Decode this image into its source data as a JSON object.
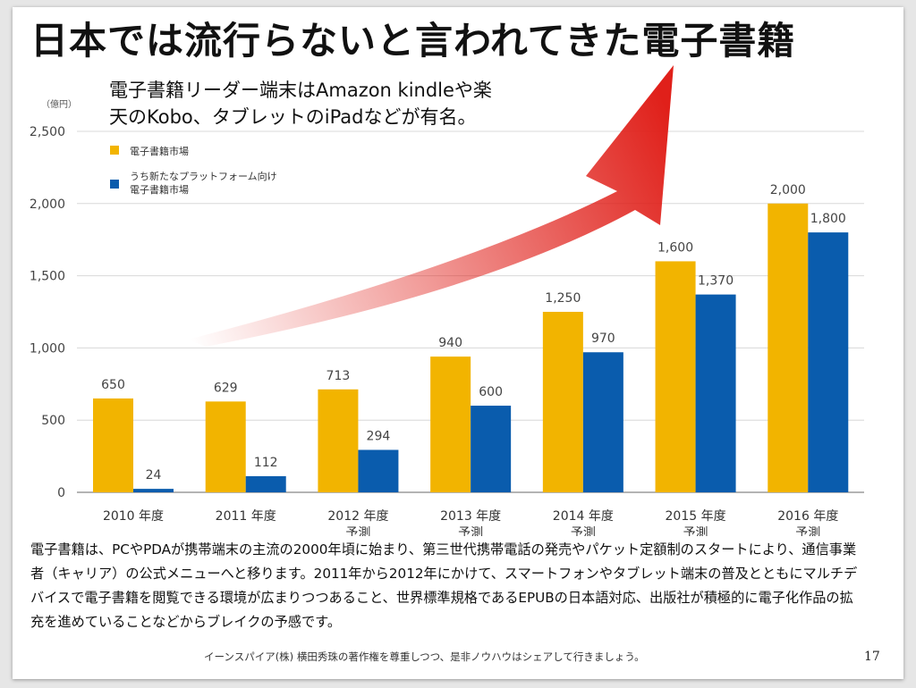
{
  "slide": {
    "title": "日本では流行らないと言われてきた電子書籍",
    "caption_line1": "電子書籍リーダー端末はAmazon kindleや楽",
    "caption_line2": "天のKobo、タブレットのiPadなどが有名。",
    "body": "電子書籍は、PCやPDAが携帯端末の主流の2000年頃に始まり、第三世代携帯電話の発売やパケット定額制のスタートにより、通信事業者（キャリア）の公式メニューへと移ります。2011年から2012年にかけて、スマートフォンやタブレット端末の普及とともにマルチデバイスで電子書籍を閲覧できる環境が広まりつつあること、世界標準規格であるEPUBの日本語対応、出版社が積極的に電子化作品の拡充を進めていることなどからブレイクの予感です。",
    "footer": "イーンスパイア(株) 横田秀珠の著作権を尊重しつつ、是非ノウハウはシェアして行きましょう。",
    "page_number": "17"
  },
  "chart_data": {
    "type": "bar",
    "unit_label": "（億円）",
    "ylim": [
      0,
      2500
    ],
    "y_ticks": [
      "0",
      "500",
      "1,000",
      "1,500",
      "2,000",
      "2,500"
    ],
    "grid": true,
    "legend_position": "top-left",
    "categories": [
      [
        "2010 年度"
      ],
      [
        "2011 年度"
      ],
      [
        "2012 年度",
        "予測"
      ],
      [
        "2013 年度",
        "予測"
      ],
      [
        "2014 年度",
        "予測"
      ],
      [
        "2015 年度",
        "予測"
      ],
      [
        "2016 年度",
        "予測"
      ]
    ],
    "series": [
      {
        "name": "電子書籍市場",
        "color": "#f2b400",
        "values": [
          650,
          629,
          713,
          940,
          1250,
          1600,
          2000
        ],
        "labels": [
          "650",
          "629",
          "713",
          "940",
          "1,250",
          "1,600",
          "2,000"
        ]
      },
      {
        "name_lines": [
          "うち新たなプラットフォーム向け",
          "電子書籍市場"
        ],
        "color": "#0a5cad",
        "values": [
          24,
          112,
          294,
          600,
          970,
          1370,
          1800
        ],
        "labels": [
          "24",
          "112",
          "294",
          "600",
          "970",
          "1,370",
          "1,800"
        ]
      }
    ],
    "colors": {
      "arrow": "#e0201a",
      "grid": "#d8d8d8",
      "plot_bg": "#ffffff"
    }
  }
}
